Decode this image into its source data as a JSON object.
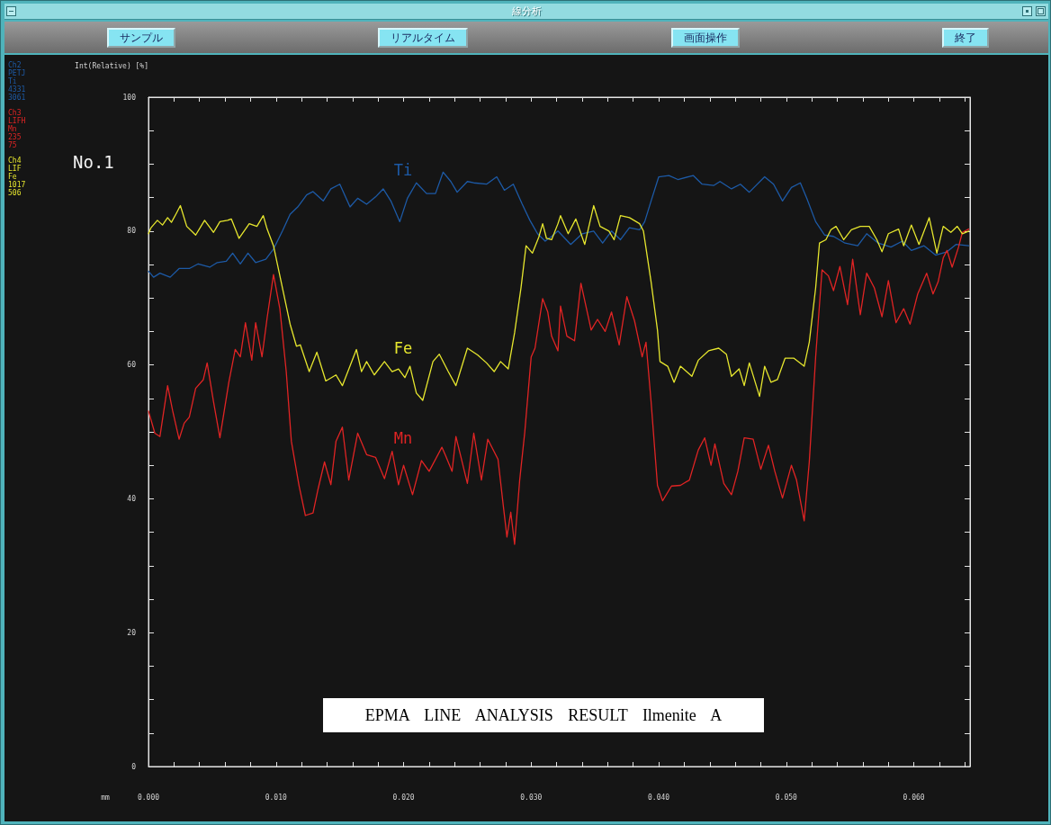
{
  "chart_data": {
    "type": "line",
    "title": "EPMA LINE ANALYSIS RESULT Ilmenite A",
    "xlabel": "mm",
    "ylabel": "Int(Relative) [%]",
    "annotations": [
      "線分析",
      "サンプル",
      "リアルタイム",
      "画面操作",
      "終了",
      "No.1",
      "Ch2\nPETJ\nTi\n4331\n3061",
      "Ch3\nLIFH\nMn\n235\n75",
      "Ch4\nLIF\nFe\n1017\n506"
    ],
    "xlim": [
      0,
      0.0644
    ],
    "xticks": [
      {
        "value": 0,
        "label": "0.000"
      },
      {
        "value": 0.002,
        "label": null
      },
      {
        "value": 0.004,
        "label": null
      },
      {
        "value": 0.006,
        "label": null
      },
      {
        "value": 0.008,
        "label": null
      },
      {
        "value": 0.01,
        "label": "0.010"
      },
      {
        "value": 0.012,
        "label": null
      },
      {
        "value": 0.014,
        "label": null
      },
      {
        "value": 0.016,
        "label": null
      },
      {
        "value": 0.018,
        "label": null
      },
      {
        "value": 0.02,
        "label": "0.020"
      },
      {
        "value": 0.022,
        "label": null
      },
      {
        "value": 0.024,
        "label": null
      },
      {
        "value": 0.026,
        "label": null
      },
      {
        "value": 0.028,
        "label": null
      },
      {
        "value": 0.03,
        "label": "0.030"
      },
      {
        "value": 0.032,
        "label": null
      },
      {
        "value": 0.034,
        "label": null
      },
      {
        "value": 0.036,
        "label": null
      },
      {
        "value": 0.038,
        "label": null
      },
      {
        "value": 0.04,
        "label": "0.040"
      },
      {
        "value": 0.042,
        "label": null
      },
      {
        "value": 0.044,
        "label": null
      },
      {
        "value": 0.046,
        "label": null
      },
      {
        "value": 0.048,
        "label": null
      },
      {
        "value": 0.05,
        "label": "0.050"
      },
      {
        "value": 0.052,
        "label": null
      },
      {
        "value": 0.054,
        "label": null
      },
      {
        "value": 0.056,
        "label": null
      },
      {
        "value": 0.058,
        "label": null
      },
      {
        "value": 0.06,
        "label": "0.060"
      },
      {
        "value": 0.062,
        "label": null
      },
      {
        "value": 0.064,
        "label": null
      }
    ],
    "ylim": [
      0,
      100
    ],
    "yticks": [
      0,
      {
        "value": 5,
        "label": null
      },
      {
        "value": 10,
        "label": null
      },
      {
        "value": 15,
        "label": null
      },
      20,
      {
        "value": 25,
        "label": null
      },
      {
        "value": 30,
        "label": null
      },
      {
        "value": 35,
        "label": null
      },
      40,
      {
        "value": 45,
        "label": null
      },
      {
        "value": 50,
        "label": null
      },
      {
        "value": 55,
        "label": null
      },
      60,
      {
        "value": 65,
        "label": null
      },
      {
        "value": 70,
        "label": null
      },
      {
        "value": 75,
        "label": null
      },
      80,
      {
        "value": 85,
        "label": null
      },
      {
        "value": 90,
        "label": null
      },
      {
        "value": 95,
        "label": null
      },
      100
    ],
    "marker": "none",
    "line_style": "solid",
    "series": [
      {
        "name": "Ti",
        "color": "#1d5aa6",
        "x": [
          0,
          0.0004,
          0.0009,
          0.0017,
          0.0024,
          0.0032,
          0.0039,
          0.0048,
          0.0054,
          0.0061,
          0.0066,
          0.0072,
          0.0078,
          0.0084,
          0.0092,
          0.0098,
          0.0105,
          0.0111,
          0.0117,
          0.0124,
          0.0129,
          0.0137,
          0.0143,
          0.015,
          0.0158,
          0.0164,
          0.0171,
          0.0178,
          0.0184,
          0.019,
          0.0197,
          0.0203,
          0.021,
          0.0218,
          0.0225,
          0.0231,
          0.0237,
          0.0242,
          0.025,
          0.0255,
          0.0265,
          0.0273,
          0.0279,
          0.0286,
          0.0293,
          0.0299,
          0.0305,
          0.0311,
          0.0316,
          0.0321,
          0.0331,
          0.034,
          0.0349,
          0.0356,
          0.0363,
          0.037,
          0.0377,
          0.0385,
          0.0389,
          0.0394,
          0.04,
          0.0408,
          0.0415,
          0.0427,
          0.0434,
          0.0443,
          0.0448,
          0.0457,
          0.0464,
          0.0471,
          0.0483,
          0.049,
          0.0497,
          0.0504,
          0.0511,
          0.0516,
          0.0523,
          0.053,
          0.0537,
          0.0546,
          0.0556,
          0.0563,
          0.0572,
          0.0582,
          0.0591,
          0.0598,
          0.0608,
          0.0617,
          0.0626,
          0.0633,
          0.0643
        ],
        "values": [
          74.0,
          73.1,
          73.7,
          73.1,
          74.4,
          74.4,
          75.1,
          74.6,
          75.3,
          75.5,
          76.7,
          75.1,
          76.7,
          75.3,
          75.8,
          77.3,
          80.0,
          82.5,
          83.6,
          85.4,
          85.9,
          84.5,
          86.3,
          87.0,
          83.6,
          84.9,
          84.0,
          85.1,
          86.3,
          84.5,
          81.4,
          84.9,
          87.2,
          85.6,
          85.6,
          88.8,
          87.4,
          85.8,
          87.4,
          87.2,
          87.0,
          88.1,
          86.1,
          87.0,
          84.0,
          81.6,
          79.6,
          78.5,
          79.2,
          80.0,
          78.0,
          79.6,
          80.0,
          78.2,
          80.0,
          78.7,
          80.5,
          80.2,
          81.4,
          84.5,
          88.1,
          88.3,
          87.7,
          88.3,
          87.0,
          86.8,
          87.4,
          86.3,
          87.0,
          85.8,
          88.1,
          87.0,
          84.5,
          86.5,
          87.2,
          84.9,
          81.4,
          79.4,
          79.2,
          78.2,
          77.8,
          79.6,
          78.2,
          77.6,
          78.5,
          77.1,
          77.8,
          76.4,
          76.9,
          78.0,
          77.8
        ]
      },
      {
        "name": "Mn",
        "color": "#e02424",
        "x": [
          0,
          0.0005,
          0.0009,
          0.0015,
          0.0019,
          0.0024,
          0.0028,
          0.0032,
          0.0037,
          0.0043,
          0.0046,
          0.0051,
          0.0056,
          0.0063,
          0.0068,
          0.0072,
          0.0076,
          0.0081,
          0.0084,
          0.0089,
          0.0093,
          0.0098,
          0.0103,
          0.0108,
          0.0112,
          0.0118,
          0.0123,
          0.0129,
          0.0133,
          0.0138,
          0.0143,
          0.0147,
          0.0152,
          0.0157,
          0.0164,
          0.0171,
          0.0178,
          0.0185,
          0.0191,
          0.0196,
          0.02,
          0.0207,
          0.0214,
          0.022,
          0.023,
          0.0233,
          0.0238,
          0.0241,
          0.025,
          0.0255,
          0.0261,
          0.0266,
          0.0274,
          0.0278,
          0.0281,
          0.0284,
          0.0287,
          0.0291,
          0.0295,
          0.03,
          0.0303,
          0.0309,
          0.0313,
          0.0316,
          0.0321,
          0.0323,
          0.0328,
          0.0334,
          0.0339,
          0.0345,
          0.0347,
          0.0352,
          0.0358,
          0.0363,
          0.0369,
          0.0375,
          0.0381,
          0.0387,
          0.039,
          0.0394,
          0.0399,
          0.0403,
          0.041,
          0.0417,
          0.0424,
          0.0431,
          0.0436,
          0.0441,
          0.0444,
          0.0451,
          0.0457,
          0.0462,
          0.0467,
          0.0474,
          0.048,
          0.0486,
          0.0491,
          0.0497,
          0.0504,
          0.0508,
          0.0514,
          0.0518,
          0.0523,
          0.0528,
          0.0533,
          0.0537,
          0.0542,
          0.0548,
          0.0552,
          0.0558,
          0.0563,
          0.0569,
          0.0575,
          0.058,
          0.0586,
          0.0592,
          0.0597,
          0.0603,
          0.061,
          0.0615,
          0.0619,
          0.0623,
          0.0626,
          0.063,
          0.0635,
          0.0638,
          0.0643
        ],
        "values": [
          53.1,
          49.8,
          49.3,
          56.9,
          53.1,
          48.9,
          51.3,
          52.2,
          56.5,
          57.8,
          60.3,
          54.5,
          49.1,
          57.4,
          62.3,
          61.2,
          66.3,
          60.7,
          66.3,
          61.2,
          67.0,
          73.5,
          68.4,
          59.0,
          48.6,
          42.0,
          37.5,
          37.9,
          41.5,
          45.5,
          42.1,
          48.6,
          50.7,
          42.8,
          49.8,
          46.6,
          46.2,
          43.0,
          47.1,
          42.1,
          45.0,
          40.6,
          45.7,
          44.1,
          47.7,
          46.4,
          44.1,
          49.3,
          42.3,
          49.8,
          42.8,
          48.9,
          45.9,
          39.2,
          34.3,
          38.0,
          33.2,
          42.8,
          50.0,
          61.2,
          62.5,
          69.9,
          67.9,
          64.3,
          62.1,
          68.8,
          64.3,
          63.6,
          72.2,
          67.0,
          65.2,
          66.8,
          65.0,
          67.9,
          63.0,
          70.2,
          66.6,
          61.2,
          63.4,
          54.5,
          42.0,
          39.7,
          41.9,
          42.0,
          42.8,
          47.3,
          49.1,
          45.0,
          48.2,
          42.3,
          40.6,
          44.1,
          49.1,
          48.9,
          44.4,
          48.0,
          44.1,
          40.1,
          45.0,
          42.8,
          36.7,
          45.5,
          61.2,
          74.2,
          73.3,
          71.1,
          74.7,
          69.0,
          75.8,
          67.5,
          73.7,
          71.5,
          67.2,
          72.6,
          66.3,
          68.4,
          66.1,
          70.6,
          73.7,
          70.6,
          72.4,
          76.0,
          77.1,
          74.6,
          77.6,
          79.8,
          80.3
        ]
      },
      {
        "name": "Fe",
        "color": "#e6e62e",
        "x": [
          0,
          0.0002,
          0.0007,
          0.0011,
          0.0015,
          0.0018,
          0.0022,
          0.0025,
          0.003,
          0.0037,
          0.0044,
          0.0051,
          0.0056,
          0.0062,
          0.0065,
          0.0071,
          0.0079,
          0.0085,
          0.009,
          0.0093,
          0.0098,
          0.0102,
          0.0106,
          0.0111,
          0.0116,
          0.0119,
          0.0126,
          0.0132,
          0.0139,
          0.0147,
          0.0152,
          0.0163,
          0.0167,
          0.0171,
          0.0177,
          0.0185,
          0.0191,
          0.0196,
          0.0201,
          0.0205,
          0.021,
          0.0215,
          0.0223,
          0.0228,
          0.0235,
          0.0241,
          0.025,
          0.0258,
          0.0265,
          0.0271,
          0.0276,
          0.0282,
          0.0287,
          0.0292,
          0.0296,
          0.0301,
          0.0306,
          0.0309,
          0.0312,
          0.0316,
          0.0321,
          0.0323,
          0.0329,
          0.0335,
          0.0342,
          0.0349,
          0.0354,
          0.0361,
          0.0365,
          0.037,
          0.0377,
          0.0385,
          0.0388,
          0.0394,
          0.0399,
          0.0401,
          0.0407,
          0.0412,
          0.0417,
          0.0426,
          0.0431,
          0.0439,
          0.0447,
          0.0453,
          0.0457,
          0.0463,
          0.0467,
          0.0471,
          0.0479,
          0.0483,
          0.0488,
          0.0493,
          0.0499,
          0.0506,
          0.0514,
          0.0518,
          0.0523,
          0.0526,
          0.0531,
          0.0535,
          0.0539,
          0.0545,
          0.0551,
          0.0558,
          0.0565,
          0.0571,
          0.0575,
          0.058,
          0.0588,
          0.0592,
          0.0598,
          0.0604,
          0.0612,
          0.0618,
          0.0623,
          0.0629,
          0.0634,
          0.0638,
          0.0643
        ],
        "values": [
          79.6,
          80.5,
          81.6,
          80.9,
          82.0,
          81.3,
          82.7,
          83.8,
          80.7,
          79.4,
          81.6,
          79.8,
          81.4,
          81.6,
          81.8,
          78.9,
          81.1,
          80.7,
          82.3,
          80.3,
          77.8,
          74.2,
          70.6,
          66.1,
          62.8,
          63.0,
          59.0,
          61.9,
          57.6,
          58.5,
          56.9,
          62.3,
          59.0,
          60.5,
          58.5,
          60.5,
          59.0,
          59.4,
          58.1,
          59.8,
          55.8,
          54.7,
          60.5,
          61.6,
          59.0,
          56.9,
          62.5,
          61.5,
          60.3,
          59.0,
          60.5,
          59.4,
          64.8,
          71.5,
          77.8,
          76.7,
          79.1,
          81.1,
          78.9,
          78.7,
          81.1,
          82.3,
          79.6,
          81.8,
          78.0,
          83.8,
          80.7,
          80.0,
          78.7,
          82.3,
          82.0,
          81.1,
          80.0,
          72.4,
          65.2,
          60.5,
          59.8,
          57.4,
          59.8,
          58.3,
          60.7,
          62.1,
          62.5,
          61.6,
          58.3,
          59.4,
          56.9,
          60.3,
          55.3,
          59.8,
          57.4,
          57.8,
          61.0,
          61.0,
          59.8,
          63.4,
          71.5,
          78.2,
          78.7,
          80.2,
          80.7,
          78.7,
          80.2,
          80.7,
          80.7,
          78.7,
          76.9,
          79.6,
          80.3,
          77.8,
          80.9,
          78.0,
          82.0,
          76.7,
          80.7,
          79.8,
          80.7,
          79.6,
          80.0
        ]
      }
    ]
  }
}
